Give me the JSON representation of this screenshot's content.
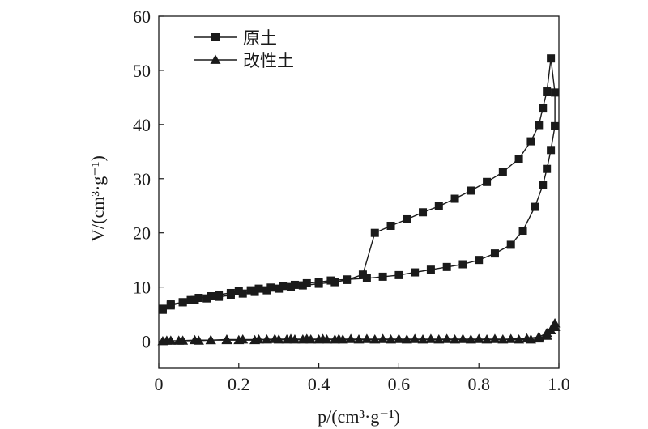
{
  "chart_data": {
    "type": "line",
    "xlabel": "p/(cm³·g⁻¹)",
    "ylabel": "V/(cm³·g⁻¹)",
    "xlim": [
      0,
      1.0
    ],
    "ylim": [
      -5,
      60
    ],
    "xticks": [
      0,
      0.2,
      0.4,
      0.6,
      0.8,
      1.0
    ],
    "xtick_labels": [
      "0",
      "0.2",
      "0.4",
      "0.6",
      "0.8",
      "1.0"
    ],
    "yticks": [
      0,
      10,
      20,
      30,
      40,
      50,
      60
    ],
    "ytick_labels": [
      "0",
      "10",
      "20",
      "30",
      "40",
      "50",
      "60"
    ],
    "grid": false,
    "legend_position": "top-left",
    "series": [
      {
        "name": "原土",
        "marker": "square",
        "color": "#1a1a1a",
        "x": [
          0.01,
          0.03,
          0.06,
          0.08,
          0.1,
          0.13,
          0.15,
          0.18,
          0.2,
          0.23,
          0.25,
          0.28,
          0.31,
          0.34,
          0.37,
          0.4,
          0.43,
          0.47,
          0.52,
          0.56,
          0.6,
          0.64,
          0.68,
          0.72,
          0.76,
          0.8,
          0.84,
          0.88,
          0.91,
          0.94,
          0.96,
          0.97,
          0.98,
          0.99,
          0.99,
          0.98,
          0.97,
          0.96,
          0.95,
          0.93,
          0.9,
          0.86,
          0.82,
          0.78,
          0.74,
          0.7,
          0.66,
          0.62,
          0.58,
          0.54,
          0.51,
          0.47,
          0.44,
          0.4,
          0.36,
          0.33,
          0.3,
          0.27,
          0.24,
          0.21,
          0.18,
          0.15,
          0.12,
          0.09,
          0.06,
          0.03,
          0.01
        ],
        "y": [
          5.8,
          6.8,
          7.2,
          7.6,
          8.0,
          8.3,
          8.6,
          8.9,
          9.2,
          9.4,
          9.7,
          9.9,
          10.2,
          10.4,
          10.7,
          10.9,
          11.2,
          11.4,
          11.6,
          11.9,
          12.2,
          12.7,
          13.2,
          13.7,
          14.2,
          15.0,
          16.2,
          17.8,
          20.4,
          24.8,
          28.8,
          31.8,
          35.3,
          39.7,
          45.9,
          52.2,
          46.1,
          43.1,
          39.9,
          36.9,
          33.7,
          31.2,
          29.4,
          27.8,
          26.3,
          24.9,
          23.8,
          22.5,
          21.3,
          20.0,
          12.3,
          11.3,
          10.9,
          10.6,
          10.3,
          10.0,
          9.7,
          9.4,
          9.1,
          8.8,
          8.5,
          8.2,
          7.9,
          7.6,
          7.2,
          6.6,
          6.0
        ]
      },
      {
        "name": "改性土",
        "marker": "triangle",
        "color": "#1a1a1a",
        "x": [
          0.01,
          0.03,
          0.06,
          0.1,
          0.13,
          0.17,
          0.2,
          0.24,
          0.27,
          0.3,
          0.32,
          0.34,
          0.36,
          0.38,
          0.4,
          0.42,
          0.44,
          0.46,
          0.5,
          0.54,
          0.58,
          0.62,
          0.66,
          0.7,
          0.74,
          0.78,
          0.82,
          0.86,
          0.9,
          0.93,
          0.95,
          0.97,
          0.98,
          0.99,
          0.99,
          0.97,
          0.95,
          0.92,
          0.88,
          0.84,
          0.8,
          0.76,
          0.72,
          0.68,
          0.64,
          0.6,
          0.56,
          0.52,
          0.48,
          0.45,
          0.41,
          0.37,
          0.33,
          0.29,
          0.25,
          0.21,
          0.17,
          0.13,
          0.09,
          0.05,
          0.02
        ],
        "y": [
          0.0,
          0.1,
          0.1,
          0.1,
          0.2,
          0.2,
          0.2,
          0.2,
          0.3,
          0.3,
          0.3,
          0.3,
          0.3,
          0.3,
          0.3,
          0.3,
          0.3,
          0.3,
          0.3,
          0.3,
          0.3,
          0.3,
          0.3,
          0.3,
          0.3,
          0.3,
          0.3,
          0.3,
          0.3,
          0.3,
          0.5,
          1.0,
          2.0,
          2.6,
          3.3,
          1.5,
          0.8,
          0.5,
          0.4,
          0.4,
          0.4,
          0.4,
          0.4,
          0.4,
          0.4,
          0.4,
          0.4,
          0.4,
          0.4,
          0.4,
          0.4,
          0.4,
          0.4,
          0.4,
          0.3,
          0.3,
          0.3,
          0.2,
          0.2,
          0.1,
          0.1
        ]
      }
    ]
  }
}
